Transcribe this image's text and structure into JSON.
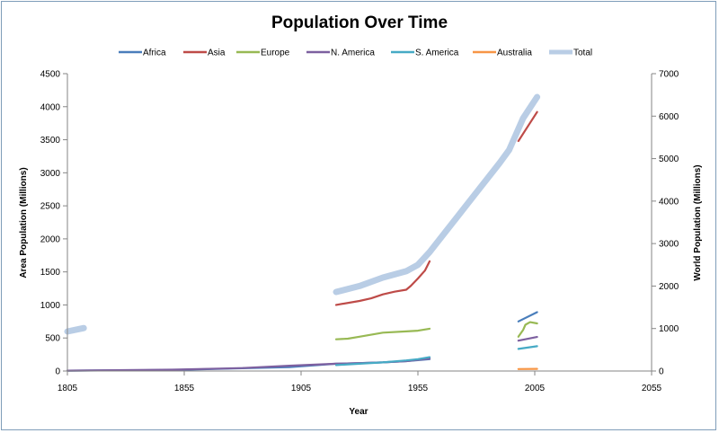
{
  "chart_data": {
    "type": "line",
    "title": "Population Over Time",
    "xlabel": "Year",
    "ylabel": "Area Population  (Millions)",
    "y2label": "World Population  (Millions)",
    "xlim": [
      1805,
      2055
    ],
    "ylim": [
      0,
      4500
    ],
    "y2lim": [
      0,
      7000
    ],
    "x_ticks": [
      1805,
      1855,
      1905,
      1955,
      2005,
      2055
    ],
    "y_ticks": [
      0,
      500,
      1000,
      1500,
      2000,
      2500,
      3000,
      3500,
      4000,
      4500
    ],
    "y2_ticks": [
      0,
      1000,
      2000,
      3000,
      4000,
      5000,
      6000,
      7000
    ],
    "grid": false,
    "legend_position": "top",
    "series": [
      {
        "name": "Africa",
        "color": "#4a7ebb",
        "axis": "left",
        "segments": [
          [
            [
              1805,
              5
            ],
            [
              1850,
              15
            ],
            [
              1900,
              60
            ],
            [
              1920,
              110
            ],
            [
              1930,
              120
            ],
            [
              1940,
              130
            ],
            [
              1950,
              150
            ],
            [
              1960,
              180
            ]
          ],
          [
            [
              1998,
              750
            ],
            [
              2006,
              890
            ]
          ]
        ]
      },
      {
        "name": "Asia",
        "color": "#be4b48",
        "axis": "left",
        "segments": [
          [
            [
              1920,
              1000
            ],
            [
              1930,
              1060
            ],
            [
              1935,
              1100
            ],
            [
              1940,
              1160
            ],
            [
              1945,
              1200
            ],
            [
              1950,
              1230
            ],
            [
              1952,
              1290
            ],
            [
              1955,
              1400
            ],
            [
              1958,
              1520
            ],
            [
              1960,
              1660
            ]
          ],
          [
            [
              1998,
              3480
            ],
            [
              2002,
              3700
            ],
            [
              2006,
              3920
            ]
          ]
        ]
      },
      {
        "name": "Europe",
        "color": "#98b954",
        "axis": "left",
        "segments": [
          [
            [
              1920,
              480
            ],
            [
              1925,
              490
            ],
            [
              1930,
              520
            ],
            [
              1940,
              580
            ],
            [
              1950,
              600
            ],
            [
              1955,
              610
            ],
            [
              1960,
              640
            ]
          ],
          [
            [
              1998,
              520
            ],
            [
              2000,
              620
            ],
            [
              2001,
              700
            ],
            [
              2003,
              740
            ],
            [
              2006,
              720
            ]
          ]
        ]
      },
      {
        "name": "N. America",
        "color": "#7d60a0",
        "axis": "left",
        "segments": [
          [
            [
              1805,
              5
            ],
            [
              1850,
              20
            ],
            [
              1880,
              45
            ],
            [
              1900,
              80
            ],
            [
              1920,
              110
            ],
            [
              1930,
              120
            ],
            [
              1940,
              130
            ],
            [
              1950,
              150
            ],
            [
              1960,
              190
            ]
          ],
          [
            [
              1998,
              460
            ],
            [
              2006,
              515
            ]
          ]
        ]
      },
      {
        "name": "S. America",
        "color": "#46aac5",
        "axis": "left",
        "segments": [
          [
            [
              1920,
              90
            ],
            [
              1930,
              110
            ],
            [
              1940,
              130
            ],
            [
              1950,
              160
            ],
            [
              1955,
              180
            ],
            [
              1960,
              210
            ]
          ],
          [
            [
              1998,
              335
            ],
            [
              2006,
              375
            ]
          ]
        ]
      },
      {
        "name": "Australia",
        "color": "#f79646",
        "axis": "left",
        "segments": [
          [
            [
              1998,
              30
            ],
            [
              2006,
              32
            ]
          ]
        ]
      },
      {
        "name": "Total",
        "color": "#b9cde5",
        "axis": "right",
        "segments": [
          [
            [
              1805,
              930
            ],
            [
              1812,
              1010
            ]
          ],
          [
            [
              1920,
              1860
            ],
            [
              1930,
              2000
            ],
            [
              1940,
              2200
            ],
            [
              1950,
              2350
            ],
            [
              1955,
              2500
            ],
            [
              1960,
              2800
            ],
            [
              1970,
              3500
            ],
            [
              1980,
              4200
            ],
            [
              1990,
              4900
            ],
            [
              1994,
              5200
            ],
            [
              1998,
              5700
            ],
            [
              2000,
              5950
            ],
            [
              2003,
              6200
            ],
            [
              2006,
              6450
            ]
          ]
        ]
      }
    ]
  }
}
